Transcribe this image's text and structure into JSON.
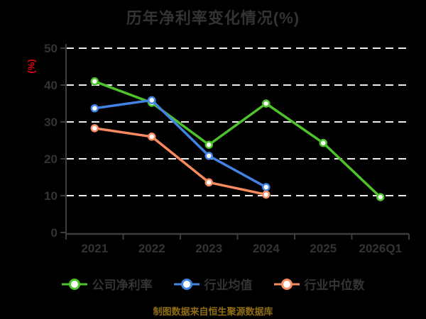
{
  "title": "历年净利率变化情况(%)",
  "source_note": "制图数据来自恒生聚源数据库",
  "colors": {
    "background": "#000000",
    "title_text": "#333333",
    "axis": "#3c3c3c",
    "tick_label": "#333333",
    "legend_text": "#333333",
    "gridline": "#ececec",
    "ylabel_text": "#e60012",
    "source_text": "#8f6d12",
    "marker_fill": "#ffffff",
    "series_green": "#4fc32b",
    "series_blue": "#4282e2",
    "series_orange": "#f78b5f"
  },
  "chart_data": {
    "type": "line",
    "title": "历年净利率变化情况(%)",
    "categories": [
      "2021",
      "2022",
      "2023",
      "2024",
      "2025",
      "2026Q1"
    ],
    "xlabel": "",
    "ylabel": "(%)",
    "ylim": [
      0,
      50
    ],
    "yticks": [
      0,
      10,
      20,
      30,
      40,
      50
    ],
    "grid": "horizontal-dashed",
    "legend_position": "bottom",
    "marker": "circle-white-fill",
    "series": [
      {
        "name": "公司净利率",
        "color": "#4fc32b",
        "values": [
          41.0,
          35.2,
          23.8,
          35.0,
          24.3,
          9.6
        ]
      },
      {
        "name": "行业均值",
        "color": "#4282e2",
        "values": [
          33.7,
          35.9,
          20.8,
          12.3,
          null,
          null
        ]
      },
      {
        "name": "行业中位数",
        "color": "#f78b5f",
        "values": [
          28.3,
          26.0,
          13.6,
          10.3,
          null,
          null
        ]
      }
    ]
  }
}
